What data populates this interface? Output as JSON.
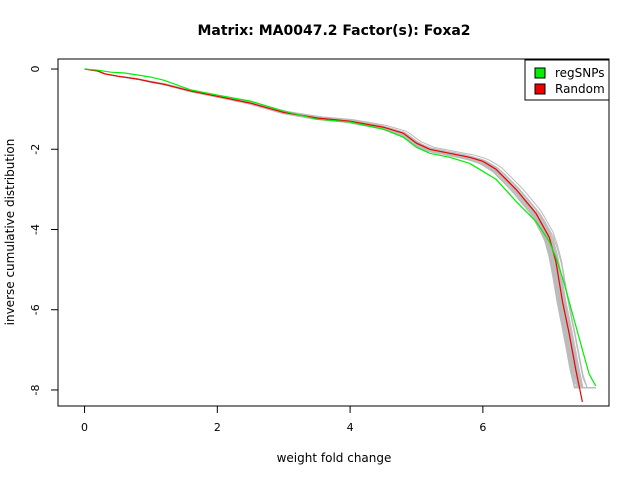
{
  "chart_data": {
    "type": "line",
    "title": "Matrix: MA0047.2 Factor(s): Foxa2",
    "xlabel": "weight fold change",
    "ylabel": "inverse cumulative distribution",
    "xlim": [
      -0.4,
      7.9
    ],
    "ylim": [
      -8.4,
      0.25
    ],
    "xticks": [
      0,
      2,
      4,
      6
    ],
    "yticks": [
      0,
      -2,
      -4,
      -6,
      -8
    ],
    "grid": false,
    "legend_position": "top-right",
    "legend": [
      {
        "label": "regSNPs",
        "color": "#00ee00"
      },
      {
        "label": "Random",
        "color": "#ee0000"
      }
    ],
    "series": [
      {
        "name": "regSNPs",
        "color": "#00ee00",
        "x": [
          0,
          0.2,
          0.4,
          0.6,
          0.8,
          1.0,
          1.2,
          1.6,
          2.0,
          2.5,
          3.0,
          3.5,
          4.0,
          4.5,
          4.8,
          5.0,
          5.2,
          5.5,
          5.8,
          6.0,
          6.2,
          6.5,
          6.8,
          7.0,
          7.1,
          7.2,
          7.3,
          7.4,
          7.5,
          7.6,
          7.7
        ],
        "y": [
          0,
          -0.03,
          -0.08,
          -0.1,
          -0.15,
          -0.2,
          -0.28,
          -0.52,
          -0.65,
          -0.8,
          -1.05,
          -1.25,
          -1.32,
          -1.5,
          -1.7,
          -1.95,
          -2.1,
          -2.2,
          -2.35,
          -2.55,
          -2.75,
          -3.3,
          -3.8,
          -4.3,
          -4.7,
          -5.2,
          -5.8,
          -6.4,
          -7.0,
          -7.6,
          -7.9
        ]
      },
      {
        "name": "Random",
        "color": "#ee0000",
        "x": [
          0,
          0.2,
          0.3,
          0.5,
          0.8,
          1.0,
          1.2,
          1.6,
          2.0,
          2.5,
          3.0,
          3.5,
          4.0,
          4.5,
          4.8,
          5.0,
          5.2,
          5.5,
          5.8,
          6.0,
          6.2,
          6.5,
          6.8,
          7.0,
          7.1,
          7.2,
          7.3,
          7.4,
          7.5
        ],
        "y": [
          0,
          -0.05,
          -0.12,
          -0.18,
          -0.25,
          -0.32,
          -0.38,
          -0.55,
          -0.68,
          -0.85,
          -1.08,
          -1.22,
          -1.3,
          -1.45,
          -1.6,
          -1.85,
          -2.0,
          -2.1,
          -2.2,
          -2.3,
          -2.5,
          -3.0,
          -3.6,
          -4.2,
          -4.8,
          -5.8,
          -6.6,
          -7.5,
          -8.3
        ]
      }
    ],
    "random_band_color": "#bbbbbb"
  }
}
